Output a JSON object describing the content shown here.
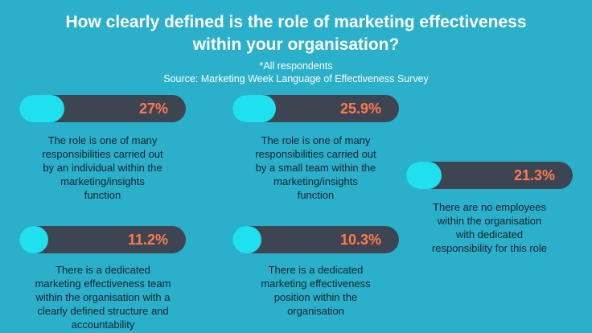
{
  "title_line1": "How clearly defined is the role of marketing effectiveness",
  "title_line2": "within your organisation?",
  "note": "*All respondents",
  "source": "Source: Marketing Week Language of Effectiveness Survey",
  "colors": {
    "background": "#2bb0cb",
    "bar_track": "#3e4552",
    "bar_fill": "#1fe0ee",
    "percent_text": "#ff7a50"
  },
  "chart_data": {
    "type": "bar",
    "unit": "%",
    "items": [
      {
        "label_pct": "27%",
        "value": 27,
        "lines": [
          "The role is one of many",
          "responsibilities carried out",
          "by an individual within the",
          "marketing/insights",
          "function"
        ]
      },
      {
        "label_pct": "25.9%",
        "value": 25.9,
        "lines": [
          "The role is one of many",
          "responsibilities carried out",
          "by a small team within the",
          "marketing/insights",
          "function"
        ]
      },
      {
        "label_pct": "21.3%",
        "value": 21.3,
        "lines": [
          "There are no employees",
          "within the organisation",
          "with dedicated",
          "responsibility for this role"
        ]
      },
      {
        "label_pct": "11.2%",
        "value": 11.2,
        "lines": [
          "There is a dedicated",
          "marketing effectiveness team",
          "within the organisation with a",
          "clearly defined structure and",
          "accountability"
        ]
      },
      {
        "label_pct": "10.3%",
        "value": 10.3,
        "lines": [
          "There is a dedicated",
          "marketing effectiveness",
          "position within the",
          "organisation"
        ]
      }
    ]
  }
}
